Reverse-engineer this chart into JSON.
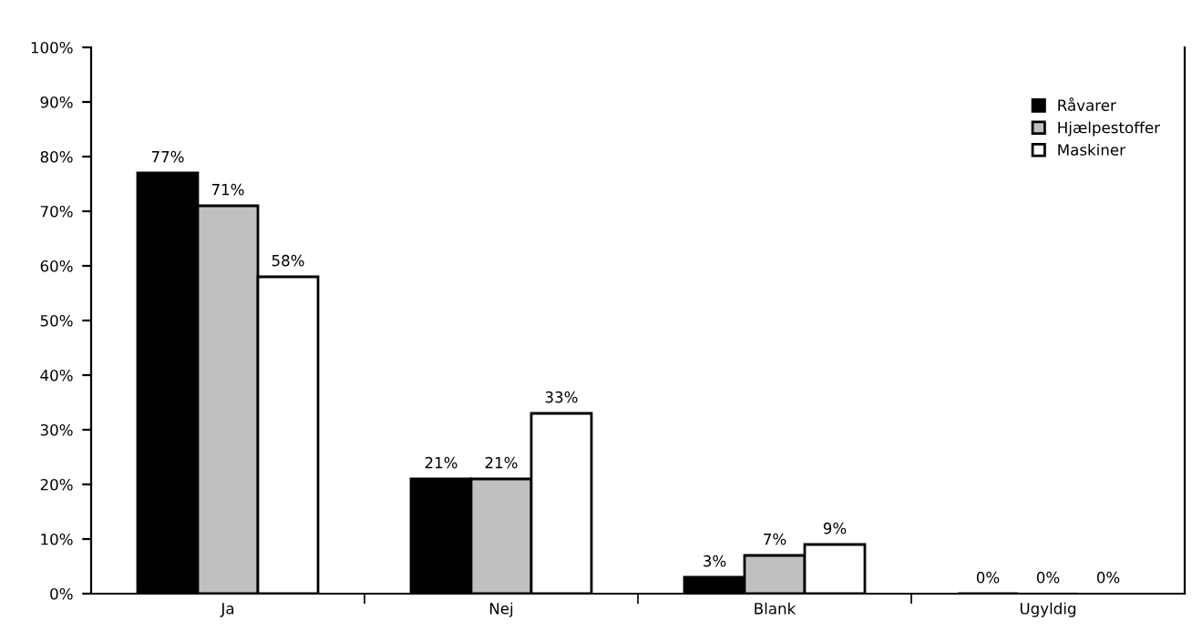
{
  "chart_data": {
    "type": "bar",
    "categories": [
      "Ja",
      "Nej",
      "Blank",
      "Ugyldig"
    ],
    "series": [
      {
        "name": "Råvarer",
        "color": "#000000",
        "values": [
          77,
          21,
          3,
          0
        ],
        "value_labels": [
          "77%",
          "21%",
          "3%",
          "0%"
        ]
      },
      {
        "name": "Hjælpestoffer",
        "color": "#c0c0c0",
        "values": [
          71,
          21,
          7,
          0
        ],
        "value_labels": [
          "71%",
          "21%",
          "7%",
          "0%"
        ]
      },
      {
        "name": "Maskiner",
        "color": "#ffffff",
        "values": [
          58,
          33,
          9,
          0
        ],
        "value_labels": [
          "58%",
          "33%",
          "9%",
          "0%"
        ]
      }
    ],
    "ylim": [
      0,
      100
    ],
    "yticks": [
      {
        "value": 0,
        "label": "0%"
      },
      {
        "value": 10,
        "label": "10%"
      },
      {
        "value": 20,
        "label": "20%"
      },
      {
        "value": 30,
        "label": "30%"
      },
      {
        "value": 40,
        "label": "40%"
      },
      {
        "value": 50,
        "label": "50%"
      },
      {
        "value": 60,
        "label": "60%"
      },
      {
        "value": 70,
        "label": "70%"
      },
      {
        "value": 80,
        "label": "80%"
      },
      {
        "value": 90,
        "label": "90%"
      },
      {
        "value": 100,
        "label": "100%"
      }
    ],
    "grid": false,
    "legend": "top right"
  }
}
